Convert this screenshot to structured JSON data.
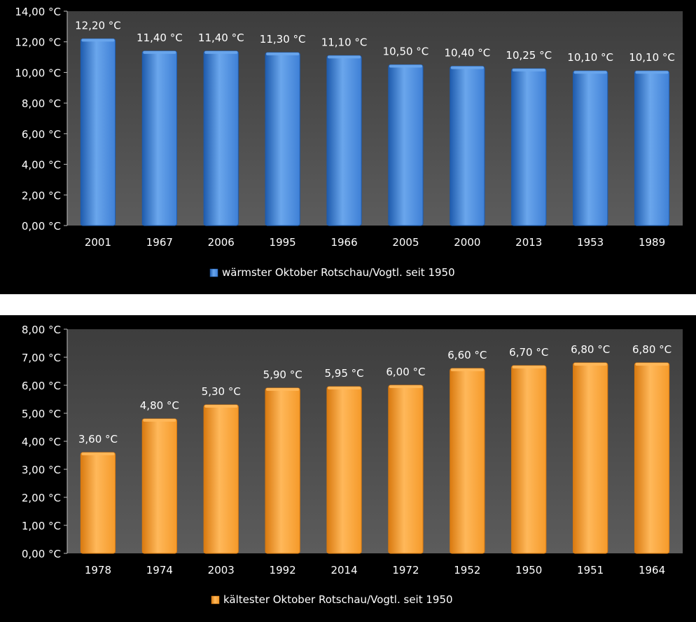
{
  "chart_data": [
    {
      "type": "bar",
      "categories": [
        "2001",
        "1967",
        "2006",
        "1995",
        "1966",
        "2005",
        "2000",
        "2013",
        "1953",
        "1989"
      ],
      "series": [
        {
          "name": "wärmster Oktober Rotschau/Vogtl. seit 1950",
          "values": [
            12.2,
            11.4,
            11.4,
            11.3,
            11.1,
            10.5,
            10.4,
            10.25,
            10.1,
            10.1
          ]
        }
      ],
      "value_labels": [
        "12,20 °C",
        "11,40 °C",
        "11,40 °C",
        "11,30 °C",
        "11,10 °C",
        "10,50 °C",
        "10,40 °C",
        "10,25 °C",
        "10,10 °C",
        "10,10 °C"
      ],
      "ylim": [
        0,
        14
      ],
      "yticks": [
        "0,00 °C",
        "2,00 °C",
        "4,00 °C",
        "6,00 °C",
        "8,00 °C",
        "10,00 °C",
        "12,00 °C",
        "14,00 °C"
      ],
      "legend_position": "bottom",
      "grid": false,
      "colors": {
        "bar_light": "#6aa6ec",
        "bar_mid": "#3f80d6",
        "bar_dark": "#1f5cae",
        "plot_bg_top": "#3d3d3d",
        "plot_bg_bottom": "#5c5c5c"
      }
    },
    {
      "type": "bar",
      "categories": [
        "1978",
        "1974",
        "2003",
        "1992",
        "2014",
        "1972",
        "1952",
        "1950",
        "1951",
        "1964"
      ],
      "series": [
        {
          "name": "kältester Oktober Rotschau/Vogtl. seit 1950",
          "values": [
            3.6,
            4.8,
            5.3,
            5.9,
            5.95,
            6.0,
            6.6,
            6.7,
            6.8,
            6.8
          ]
        }
      ],
      "value_labels": [
        "3,60 °C",
        "4,80 °C",
        "5,30 °C",
        "5,90 °C",
        "5,95 °C",
        "6,00 °C",
        "6,60 °C",
        "6,70 °C",
        "6,80 °C",
        "6,80 °C"
      ],
      "ylim": [
        0,
        8
      ],
      "yticks": [
        "0,00 °C",
        "1,00 °C",
        "2,00 °C",
        "3,00 °C",
        "4,00 °C",
        "5,00 °C",
        "6,00 °C",
        "7,00 °C",
        "8,00 °C"
      ],
      "legend_position": "bottom",
      "grid": false,
      "colors": {
        "bar_light": "#ffb85a",
        "bar_mid": "#f59a2a",
        "bar_dark": "#d97a10",
        "plot_bg_top": "#3d3d3d",
        "plot_bg_bottom": "#5c5c5c"
      }
    }
  ]
}
